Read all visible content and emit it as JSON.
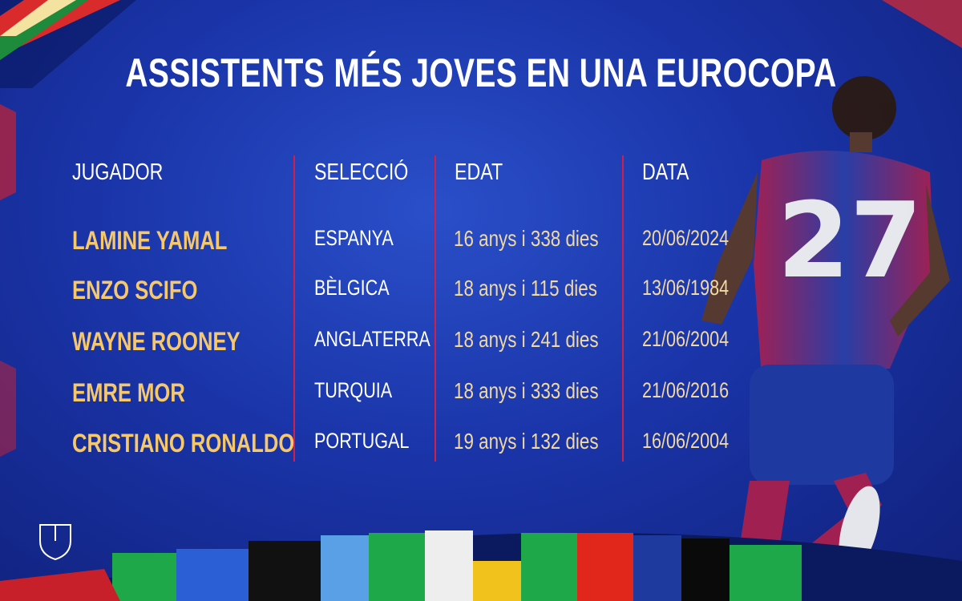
{
  "title": "ASSISTENTS MÉS JOVES EN UNA EUROCOPA",
  "table": {
    "headers": [
      "JUGADOR",
      "SELECCIÓ",
      "EDAT",
      "DATA"
    ],
    "rows": [
      [
        "LAMINE YAMAL",
        "ESPANYA",
        "16 anys i 338 dies",
        "20/06/2024"
      ],
      [
        "ENZO SCIFO",
        "BÈLGICA",
        "18 anys i 115 dies",
        "13/06/1984"
      ],
      [
        "WAYNE ROONEY",
        "ANGLATERRA",
        "18 anys i 241 dies",
        "21/06/2004"
      ],
      [
        "EMRE MOR",
        "TURQUIA",
        "18 anys i 333 dies",
        "21/06/2016"
      ],
      [
        "CRISTIANO RONALDO",
        "PORTUGAL",
        "19 anys i 132 dies",
        "16/06/2004"
      ]
    ]
  }
}
